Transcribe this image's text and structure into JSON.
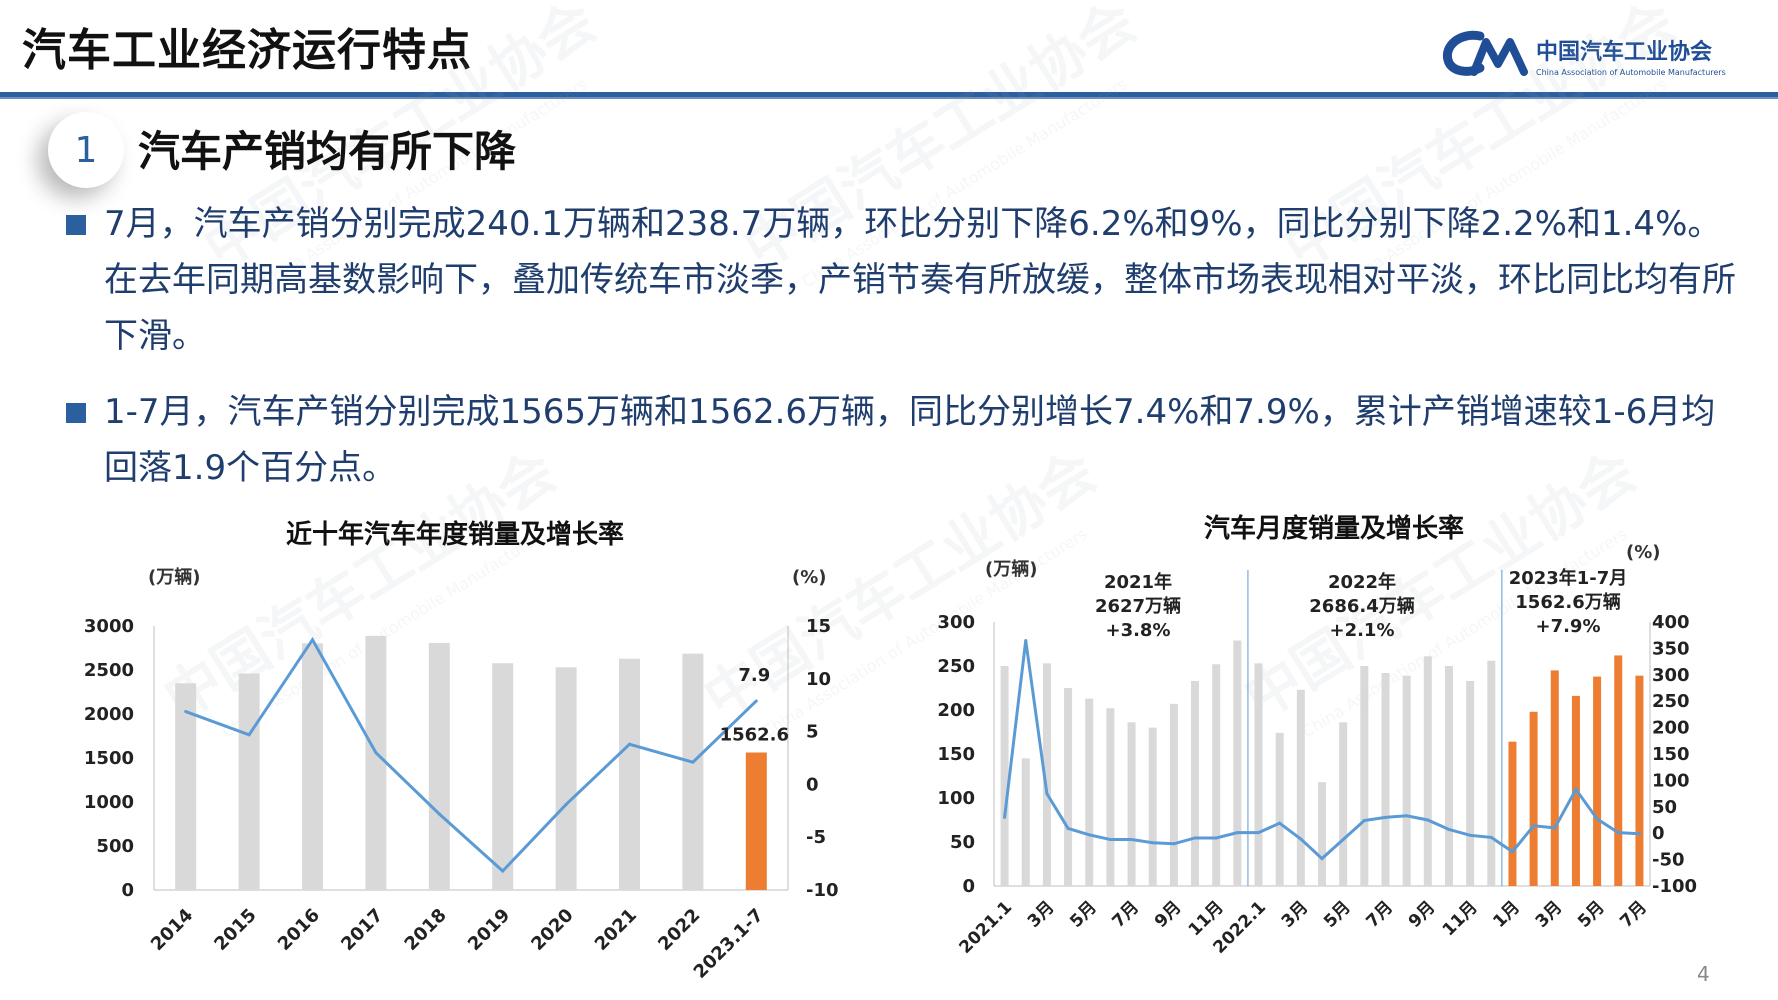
{
  "header": {
    "title": "汽车工业经济运行特点",
    "logo_name": "中国汽车工业协会",
    "logo_en": "China Association of Automobile Manufacturers",
    "rule_color": "#2c5f9e"
  },
  "section": {
    "number": "1",
    "title": "汽车产销均有所下降"
  },
  "bullets": [
    "7月，汽车产销分别完成240.1万辆和238.7万辆，环比分别下降6.2%和9%，同比分别下降2.2%和1.4%。在去年同期高基数影响下，叠加传统车市淡季，产销节奏有所放缓，整体市场表现相对平淡，环比同比均有所下滑。",
    "1-7月，汽车产销分别完成1565万辆和1562.6万辆，同比分别增长7.4%和7.9%，累计产销增速较1-6月均回落1.9个百分点。"
  ],
  "page_number": "4",
  "watermark": {
    "text": "中国汽车工业协会",
    "subtext": "China Association of Automobile Manufacturers"
  },
  "colors": {
    "bar_gray": "#d9d9d9",
    "bar_orange": "#ed7d31",
    "line_blue": "#5b9bd5",
    "text_blue": "#1f3e6e"
  },
  "chart_data": [
    {
      "type": "bar",
      "title": "近十年汽车年度销量及增长率",
      "ylabel": "(万辆)",
      "y2label": "(%)",
      "categories": [
        "2014",
        "2015",
        "2016",
        "2017",
        "2018",
        "2019",
        "2020",
        "2021",
        "2022",
        "2023.1-7"
      ],
      "series": [
        {
          "values": [
            2349,
            2460,
            2803,
            2888,
            2808,
            2577,
            2531,
            2628,
            2686,
            1562.6
          ],
          "axis": "left",
          "kind": "bar"
        },
        {
          "values": [
            6.9,
            4.7,
            13.7,
            3.0,
            -2.8,
            -8.2,
            -1.9,
            3.8,
            2.1,
            7.9
          ],
          "axis": "right",
          "kind": "line"
        }
      ],
      "ylim": [
        0,
        3000
      ],
      "yticks": [
        "3000",
        "2500",
        "2000",
        "1500",
        "1000",
        "500",
        "0"
      ],
      "y2lim": [
        -10,
        15
      ],
      "y2ticks": [
        "15",
        "10",
        "5",
        "0",
        "-5",
        "-10"
      ],
      "data_labels": {
        "last_bar": "1562.6",
        "last_point": "7.9"
      },
      "highlight_last": true,
      "grid": false
    },
    {
      "type": "bar",
      "title": "汽车月度销量及增长率",
      "ylabel": "(万辆)",
      "y2label": "(%)",
      "x": [
        "2021.1",
        "2021.2",
        "2021.3",
        "2021.4",
        "2021.5",
        "2021.6",
        "2021.7",
        "2021.8",
        "2021.9",
        "2021.10",
        "2021.11",
        "2021.12",
        "2022.1",
        "2022.2",
        "2022.3",
        "2022.4",
        "2022.5",
        "2022.6",
        "2022.7",
        "2022.8",
        "2022.9",
        "2022.10",
        "2022.11",
        "2022.12",
        "2023.1",
        "2023.2",
        "2023.3",
        "2023.4",
        "2023.5",
        "2023.6",
        "2023.7"
      ],
      "tick_labels": [
        "2021.1",
        "3月",
        "5月",
        "7月",
        "9月",
        "11月",
        "2022.1",
        "3月",
        "5月",
        "7月",
        "9月",
        "11月",
        "1月",
        "3月",
        "5月",
        "7月"
      ],
      "series": [
        {
          "values": [
            250,
            145,
            253,
            225,
            213,
            202,
            186,
            180,
            207,
            233,
            252,
            279,
            253,
            174,
            223,
            118,
            186,
            250,
            242,
            239,
            261,
            250,
            233,
            256,
            164,
            198,
            245,
            216,
            238,
            262,
            239
          ],
          "axis": "left",
          "kind": "bar"
        },
        {
          "values": [
            30,
            365,
            75,
            9,
            -3,
            -12,
            -12,
            -18,
            -20,
            -9,
            -9,
            1,
            1,
            19,
            -11,
            -48,
            -12,
            24,
            30,
            33,
            25,
            7,
            -4,
            -8,
            -35,
            14,
            10,
            83,
            27,
            1,
            -1
          ],
          "axis": "right",
          "kind": "line"
        }
      ],
      "ylim": [
        0,
        300
      ],
      "yticks": [
        "300",
        "250",
        "200",
        "150",
        "100",
        "50",
        "0"
      ],
      "y2lim": [
        -100,
        400
      ],
      "y2ticks": [
        "400",
        "350",
        "300",
        "250",
        "200",
        "150",
        "100",
        "50",
        "0",
        "-50",
        "-100"
      ],
      "annotations": [
        {
          "lines": [
            "2021年",
            "2627万辆",
            "+3.8%"
          ]
        },
        {
          "lines": [
            "2022年",
            "2686.4万辆",
            "+2.1%"
          ]
        },
        {
          "lines": [
            "2023年1-7月",
            "1562.6万辆",
            "+7.9%"
          ]
        }
      ],
      "highlight_from_index": 24,
      "grid": false
    }
  ]
}
